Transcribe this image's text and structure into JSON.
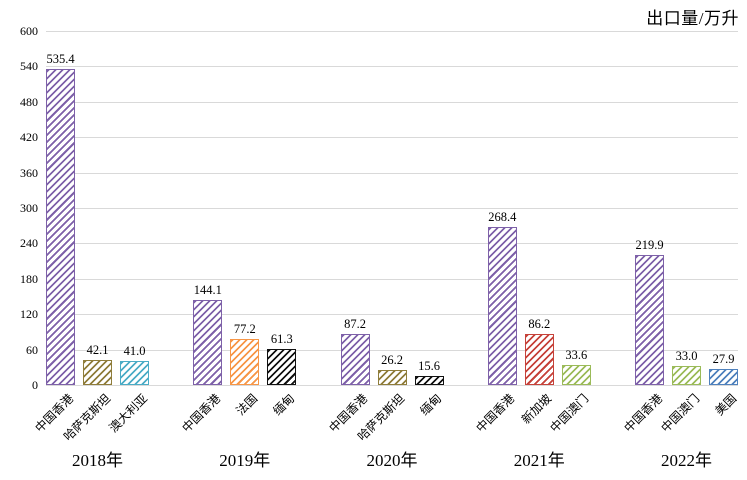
{
  "chart_data": {
    "type": "bar",
    "title": "出口量/万升",
    "xlabel": "",
    "ylabel": "出口量/万升",
    "ylim": [
      0,
      600
    ],
    "ytick_step": 60,
    "yticks": [
      0,
      60,
      120,
      180,
      240,
      300,
      360,
      420,
      480,
      540,
      600
    ],
    "grid": true,
    "gridline_color": "#d9d9d9",
    "bar_fill_style": "diagonal-hatch-forward-slash-on-white",
    "value_label_decimals": 1,
    "legend": "none",
    "groups": [
      {
        "category": "2018年",
        "bars": [
          {
            "label": "中国香港",
            "value": 535.4,
            "color": "#7e61a9"
          },
          {
            "label": "哈萨克斯坦",
            "value": 42.1,
            "color": "#8f7d3b"
          },
          {
            "label": "澳大利亚",
            "value": 41.0,
            "color": "#4bacc6"
          }
        ]
      },
      {
        "category": "2019年",
        "bars": [
          {
            "label": "中国香港",
            "value": 144.1,
            "color": "#7e61a9"
          },
          {
            "label": "法国",
            "value": 77.2,
            "color": "#f79646"
          },
          {
            "label": "缅甸",
            "value": 61.3,
            "color": "#111111"
          }
        ]
      },
      {
        "category": "2020年",
        "bars": [
          {
            "label": "中国香港",
            "value": 87.2,
            "color": "#7e61a9"
          },
          {
            "label": "哈萨克斯坦",
            "value": 26.2,
            "color": "#8f7d3b"
          },
          {
            "label": "缅甸",
            "value": 15.6,
            "color": "#111111"
          }
        ]
      },
      {
        "category": "2021年",
        "bars": [
          {
            "label": "中国香港",
            "value": 268.4,
            "color": "#7e61a9"
          },
          {
            "label": "新加坡",
            "value": 86.2,
            "color": "#c6423a"
          },
          {
            "label": "中国澳门",
            "value": 33.6,
            "color": "#9bbb59"
          }
        ]
      },
      {
        "category": "2022年",
        "bars": [
          {
            "label": "中国香港",
            "value": 219.9,
            "color": "#7e61a9"
          },
          {
            "label": "中国澳门",
            "value": 33.0,
            "color": "#9bbb59"
          },
          {
            "label": "美国",
            "value": 27.9,
            "color": "#4f81bd"
          }
        ]
      }
    ]
  }
}
